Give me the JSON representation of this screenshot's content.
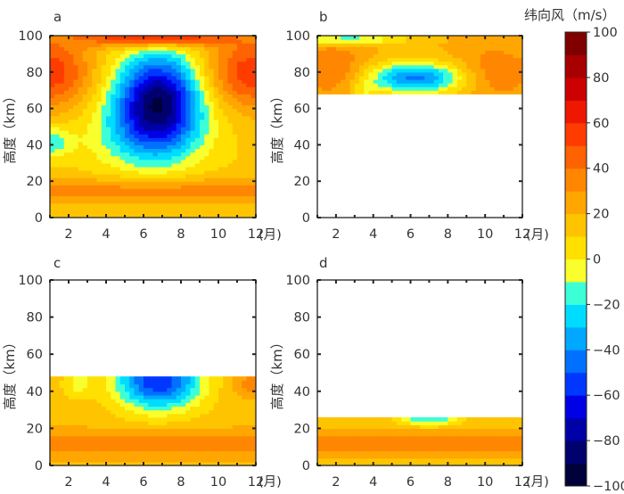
{
  "colorbar": {
    "title": "纬向风（m/s）",
    "ticks": [
      "100",
      "80",
      "60",
      "40",
      "20",
      "0",
      "−20",
      "−40",
      "−60",
      "−80",
      "−100"
    ]
  },
  "chart_data": [
    {
      "type": "heatmap",
      "panel_label": "a",
      "xlabel": "(月)",
      "ylabel": "高度（km）",
      "x_ticks": [
        "2",
        "4",
        "6",
        "8",
        "10",
        "12"
      ],
      "y_ticks": [
        "0",
        "20",
        "40",
        "60",
        "80",
        "100"
      ],
      "xlim": [
        1,
        12
      ],
      "ylim": [
        0,
        100
      ],
      "data_alt_range": [
        0,
        100
      ],
      "units": "m/s",
      "description_of_features": [
        {
          "month_center": 6.8,
          "alt_center": 68,
          "value_min": -70,
          "note": "strong easterly (negative) core in summer mesosphere"
        },
        {
          "months": [
            1,
            3
          ],
          "alts": [
            65,
            95
          ],
          "value": 55,
          "note": "westerly maximum in winter"
        },
        {
          "months": [
            10,
            12
          ],
          "alts": [
            65,
            95
          ],
          "value": 55
        },
        {
          "months": [
            5,
            9
          ],
          "alts": [
            95,
            100
          ],
          "value": 70
        },
        {
          "months": [
            1,
            12
          ],
          "alts": [
            10,
            20
          ],
          "value": 35
        }
      ]
    },
    {
      "type": "heatmap",
      "panel_label": "b",
      "xlabel": "(月)",
      "ylabel": "高度（km）",
      "x_ticks": [
        "2",
        "4",
        "6",
        "8",
        "10",
        "12"
      ],
      "y_ticks": [
        "0",
        "20",
        "40",
        "60",
        "80",
        "100"
      ],
      "xlim": [
        1,
        12
      ],
      "ylim": [
        0,
        100
      ],
      "data_alt_range": [
        68,
        100
      ],
      "units": "m/s",
      "description_of_features": [
        {
          "month_center": 6.3,
          "alt_center": 78,
          "value_min": -45,
          "note": "easterly minimum"
        },
        {
          "months": [
            1,
            3
          ],
          "alts": [
            70,
            95
          ],
          "value": 35
        },
        {
          "months": [
            9,
            12
          ],
          "alts": [
            70,
            95
          ],
          "value": 30
        }
      ]
    },
    {
      "type": "heatmap",
      "panel_label": "c",
      "xlabel": "(月)",
      "ylabel": "高度（km）",
      "x_ticks": [
        "2",
        "4",
        "6",
        "8",
        "10",
        "12"
      ],
      "y_ticks": [
        "0",
        "20",
        "40",
        "60",
        "80",
        "100"
      ],
      "xlim": [
        1,
        12
      ],
      "ylim": [
        0,
        100
      ],
      "data_alt_range": [
        0,
        48
      ],
      "units": "m/s",
      "description_of_features": [
        {
          "month_center": 6.8,
          "alt_center": 46,
          "value_min": -45,
          "note": "easterly core near top"
        },
        {
          "months": [
            1,
            12
          ],
          "alts": [
            8,
            18
          ],
          "value": 35
        }
      ]
    },
    {
      "type": "heatmap",
      "panel_label": "d",
      "xlabel": "(月)",
      "ylabel": "高度（km）",
      "x_ticks": [
        "2",
        "4",
        "6",
        "8",
        "10",
        "12"
      ],
      "y_ticks": [
        "0",
        "20",
        "40",
        "60",
        "80",
        "100"
      ],
      "xlim": [
        1,
        12
      ],
      "ylim": [
        0,
        100
      ],
      "data_alt_range": [
        0,
        26
      ],
      "units": "m/s",
      "description_of_features": [
        {
          "month_center": 7,
          "alt_center": 25,
          "value_min": -10,
          "note": "weak easterly near top"
        },
        {
          "months": [
            1,
            12
          ],
          "alts": [
            8,
            16
          ],
          "value": 38
        }
      ]
    }
  ]
}
